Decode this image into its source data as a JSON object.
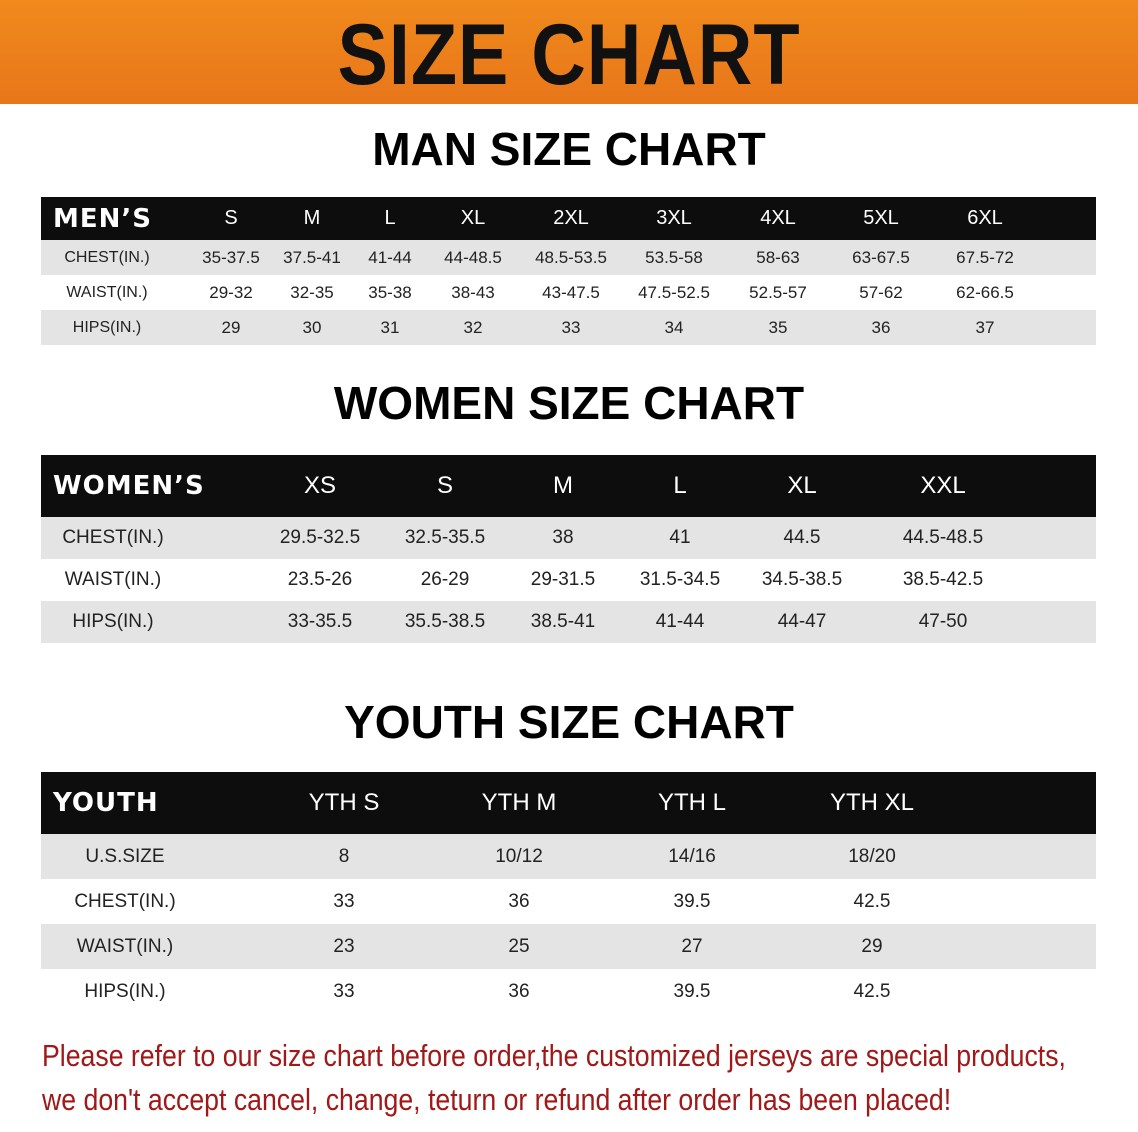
{
  "banner_title": "SIZE CHART",
  "men": {
    "title": "MAN SIZE CHART",
    "header_label": "MEN’S",
    "sizes": [
      "S",
      "M",
      "L",
      "XL",
      "2XL",
      "3XL",
      "4XL",
      "5XL",
      "6XL"
    ],
    "rows": [
      {
        "label": "CHEST(IN.)",
        "values": [
          "35-37.5",
          "37.5-41",
          "41-44",
          "44-48.5",
          "48.5-53.5",
          "53.5-58",
          "58-63",
          "63-67.5",
          "67.5-72"
        ]
      },
      {
        "label": "WAIST(IN.)",
        "values": [
          "29-32",
          "32-35",
          "35-38",
          "38-43",
          "43-47.5",
          "47.5-52.5",
          "52.5-57",
          "57-62",
          "62-66.5"
        ]
      },
      {
        "label": "HIPS(IN.)",
        "values": [
          "29",
          "30",
          "31",
          "32",
          "33",
          "34",
          "35",
          "36",
          "37"
        ]
      }
    ]
  },
  "women": {
    "title": "WOMEN SIZE CHART",
    "header_label": "WOMEN’S",
    "sizes": [
      "XS",
      "S",
      "M",
      "L",
      "XL",
      "XXL"
    ],
    "rows": [
      {
        "label": "CHEST(IN.)",
        "values": [
          "29.5-32.5",
          "32.5-35.5",
          "38",
          "41",
          "44.5",
          "44.5-48.5"
        ]
      },
      {
        "label": "WAIST(IN.)",
        "values": [
          "23.5-26",
          "26-29",
          "29-31.5",
          "31.5-34.5",
          "34.5-38.5",
          "38.5-42.5"
        ]
      },
      {
        "label": "HIPS(IN.)",
        "values": [
          "33-35.5",
          "35.5-38.5",
          "38.5-41",
          "41-44",
          "44-47",
          "47-50"
        ]
      }
    ]
  },
  "youth": {
    "title": "YOUTH SIZE CHART",
    "header_label": "YOUTH",
    "sizes": [
      "YTH S",
      "YTH M",
      "YTH L",
      "YTH XL"
    ],
    "rows": [
      {
        "label": "U.S.SIZE",
        "values": [
          "8",
          "10/12",
          "14/16",
          "18/20"
        ]
      },
      {
        "label": "CHEST(IN.)",
        "values": [
          "33",
          "36",
          "39.5",
          "42.5"
        ]
      },
      {
        "label": "WAIST(IN.)",
        "values": [
          "23",
          "25",
          "27",
          "29"
        ]
      },
      {
        "label": "HIPS(IN.)",
        "values": [
          "33",
          "36",
          "39.5",
          "42.5"
        ]
      }
    ]
  },
  "notice": {
    "line1": "Please refer to our size chart before order,the customized jerseys are special products,",
    "line2": "we don't accept cancel, change, teturn or refund after order has been placed!"
  },
  "colors": {
    "banner": "#ec7f1b",
    "header_bg": "#0d0d0d",
    "row_alt": "#e4e4e4",
    "notice": "#a01818"
  }
}
